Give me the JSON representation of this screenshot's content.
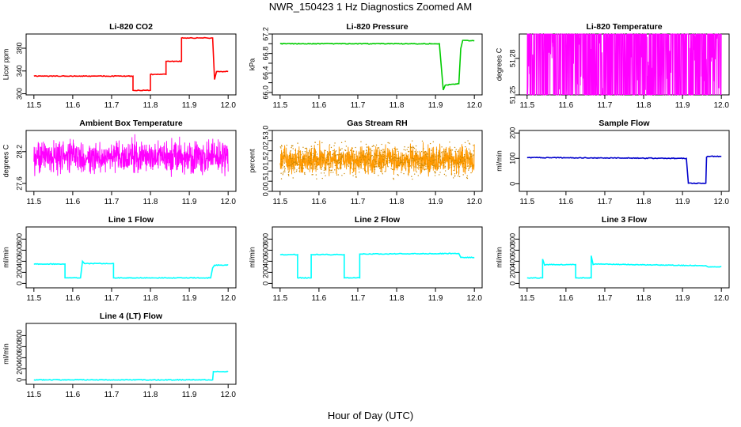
{
  "figure": {
    "title": "NWR_150423  1 Hz Diagnostics Zoomed AM",
    "xlabel": "Hour of Day (UTC)"
  },
  "chart_data": [
    {
      "type": "line",
      "title": "Li-820 CO2",
      "ylabel": "Licor ppm",
      "color": "#ff0000",
      "xlim": [
        11.48,
        12.02
      ],
      "ylim": [
        298,
        405
      ],
      "xticks": [
        11.5,
        11.6,
        11.7,
        11.8,
        11.9,
        12.0
      ],
      "xtick_labels": [
        "11.5",
        "11.6",
        "11.7",
        "11.8",
        "11.9",
        "12.0"
      ],
      "yticks": [
        300,
        340,
        380
      ],
      "ytick_labels": [
        "300",
        "340",
        "380"
      ],
      "x": [
        11.5,
        11.755,
        11.755,
        11.8,
        11.8,
        11.84,
        11.84,
        11.88,
        11.88,
        11.96,
        11.965,
        11.97,
        12.0
      ],
      "y": [
        331,
        331,
        306,
        306,
        334,
        334,
        357,
        357,
        398,
        398,
        325,
        339,
        339
      ]
    },
    {
      "type": "line",
      "title": "Li-820 Pressure",
      "ylabel": "kPa",
      "color": "#00cc00",
      "xlim": [
        11.48,
        12.02
      ],
      "ylim": [
        65.95,
        67.2
      ],
      "xticks": [
        11.5,
        11.6,
        11.7,
        11.8,
        11.9,
        12.0
      ],
      "xtick_labels": [
        "11.5",
        "11.6",
        "11.7",
        "11.8",
        "11.9",
        "12.0"
      ],
      "yticks": [
        66.0,
        66.2,
        66.4,
        66.6,
        66.8,
        67.0,
        67.2
      ],
      "ytick_labels": [
        "66.0",
        "",
        "66.4",
        "",
        "66.8",
        "",
        "67.2"
      ],
      "x": [
        11.5,
        11.91,
        11.92,
        11.925,
        11.96,
        11.965,
        11.97,
        12.0
      ],
      "y": [
        67.0,
        67.0,
        66.05,
        66.15,
        66.18,
        66.9,
        67.07,
        67.06
      ]
    },
    {
      "type": "line",
      "title": "Li-820 Temperature",
      "ylabel": "degrees C",
      "color": "#ff00ff",
      "style": "noisy-dense",
      "xlim": [
        11.48,
        12.02
      ],
      "ylim": [
        51.25,
        51.3
      ],
      "xticks": [
        11.5,
        11.6,
        11.7,
        11.8,
        11.9,
        12.0
      ],
      "xtick_labels": [
        "11.5",
        "11.6",
        "11.7",
        "11.8",
        "11.9",
        "12.0"
      ],
      "yticks": [
        51.25,
        51.28
      ],
      "ytick_labels": [
        "51.25",
        "51.28"
      ],
      "baseline": 51.28,
      "noise": 0.03
    },
    {
      "type": "line",
      "title": "Ambient Box Temperature",
      "ylabel": "degrees C",
      "color": "#ff00ff",
      "style": "noisy-dense",
      "xlim": [
        11.48,
        12.02
      ],
      "ylim": [
        27.45,
        28.6
      ],
      "xticks": [
        11.5,
        11.6,
        11.7,
        11.8,
        11.9,
        12.0
      ],
      "xtick_labels": [
        "11.5",
        "11.6",
        "11.7",
        "11.8",
        "11.9",
        "12.0"
      ],
      "yticks": [
        27.6,
        28.2
      ],
      "ytick_labels": [
        "27.6",
        "28.2"
      ],
      "baseline": 28.1,
      "noise": 0.45
    },
    {
      "type": "line",
      "title": "Gas Stream RH",
      "ylabel": "percent",
      "color": "#ff9900",
      "marker_color": "#cc8800",
      "style": "noisy-dense",
      "xlim": [
        11.48,
        12.02
      ],
      "ylim": [
        0,
        3.0
      ],
      "xticks": [
        11.5,
        11.6,
        11.7,
        11.8,
        11.9,
        12.0
      ],
      "xtick_labels": [
        "11.5",
        "11.6",
        "11.7",
        "11.8",
        "11.9",
        "12.0"
      ],
      "yticks": [
        0,
        0.5,
        1.0,
        1.5,
        2.0,
        2.5,
        3.0
      ],
      "ytick_labels": [
        "0.0",
        "0.5",
        "1.0",
        "1.5",
        "2.0",
        "2.5",
        "3.0"
      ],
      "baseline": 1.55,
      "noise": 1.0
    },
    {
      "type": "line",
      "title": "Sample Flow",
      "ylabel": "ml/min",
      "color": "#0000cc",
      "xlim": [
        11.48,
        12.02
      ],
      "ylim": [
        -30,
        210
      ],
      "xticks": [
        11.5,
        11.6,
        11.7,
        11.8,
        11.9,
        12.0
      ],
      "xtick_labels": [
        "11.5",
        "11.6",
        "11.7",
        "11.8",
        "11.9",
        "12.0"
      ],
      "yticks": [
        0,
        100,
        200
      ],
      "ytick_labels": [
        "0",
        "100",
        "200"
      ],
      "x": [
        11.5,
        11.91,
        11.915,
        11.96,
        11.962,
        11.965,
        12.0
      ],
      "y": [
        103,
        100,
        2,
        2,
        105,
        108,
        108
      ]
    },
    {
      "type": "line",
      "title": "Line 1 Flow",
      "ylabel": "ml/min",
      "color": "#00ffff",
      "xlim": [
        11.48,
        12.02
      ],
      "ylim": [
        -80,
        1020
      ],
      "xticks": [
        11.5,
        11.6,
        11.7,
        11.8,
        11.9,
        12.0
      ],
      "xtick_labels": [
        "11.5",
        "11.6",
        "11.7",
        "11.8",
        "11.9",
        "12.0"
      ],
      "yticks": [
        0,
        200,
        400,
        600,
        800
      ],
      "ytick_labels": [
        "0",
        "200",
        "400",
        "600",
        "800"
      ],
      "x": [
        11.5,
        11.58,
        11.58,
        11.62,
        11.625,
        11.63,
        11.705,
        11.705,
        11.955,
        11.96,
        11.965,
        12.0
      ],
      "y": [
        350,
        350,
        100,
        100,
        400,
        360,
        360,
        100,
        100,
        280,
        330,
        330
      ]
    },
    {
      "type": "line",
      "title": "Line 2 Flow",
      "ylabel": "ml/min",
      "color": "#00ffff",
      "xlim": [
        11.48,
        12.02
      ],
      "ylim": [
        -80,
        1020
      ],
      "xticks": [
        11.5,
        11.6,
        11.7,
        11.8,
        11.9,
        12.0
      ],
      "xtick_labels": [
        "11.5",
        "11.6",
        "11.7",
        "11.8",
        "11.9",
        "12.0"
      ],
      "yticks": [
        0,
        200,
        400,
        600,
        800
      ],
      "ytick_labels": [
        "0",
        "200",
        "400",
        "600",
        "800"
      ],
      "x": [
        11.5,
        11.545,
        11.545,
        11.58,
        11.58,
        11.665,
        11.665,
        11.705,
        11.705,
        11.96,
        11.965,
        12.0
      ],
      "y": [
        520,
        520,
        100,
        100,
        520,
        520,
        100,
        100,
        530,
        540,
        470,
        470
      ]
    },
    {
      "type": "line",
      "title": "Line 3 Flow",
      "ylabel": "ml/min",
      "color": "#00ffff",
      "xlim": [
        11.48,
        12.02
      ],
      "ylim": [
        -80,
        1020
      ],
      "xticks": [
        11.5,
        11.6,
        11.7,
        11.8,
        11.9,
        12.0
      ],
      "xtick_labels": [
        "11.5",
        "11.6",
        "11.7",
        "11.8",
        "11.9",
        "12.0"
      ],
      "yticks": [
        0,
        200,
        400,
        600,
        800
      ],
      "ytick_labels": [
        "0",
        "200",
        "400",
        "600",
        "800"
      ],
      "x": [
        11.5,
        11.54,
        11.54,
        11.545,
        11.55,
        11.625,
        11.625,
        11.665,
        11.665,
        11.67,
        11.675,
        11.96,
        11.965,
        12.0
      ],
      "y": [
        100,
        100,
        440,
        330,
        340,
        340,
        100,
        100,
        500,
        340,
        350,
        320,
        300,
        300
      ]
    },
    {
      "type": "line",
      "title": "Line 4 (LT) Flow",
      "ylabel": "ml/min",
      "color": "#00ffff",
      "xlim": [
        11.48,
        12.02
      ],
      "ylim": [
        -80,
        1020
      ],
      "xticks": [
        11.5,
        11.6,
        11.7,
        11.8,
        11.9,
        12.0
      ],
      "xtick_labels": [
        "11.5",
        "11.6",
        "11.7",
        "11.8",
        "11.9",
        "12.0"
      ],
      "yticks": [
        0,
        200,
        400,
        600,
        800
      ],
      "ytick_labels": [
        "0",
        "200",
        "400",
        "600",
        "800"
      ],
      "x": [
        11.5,
        11.96,
        11.962,
        12.0
      ],
      "y": [
        0,
        0,
        150,
        150
      ]
    }
  ]
}
